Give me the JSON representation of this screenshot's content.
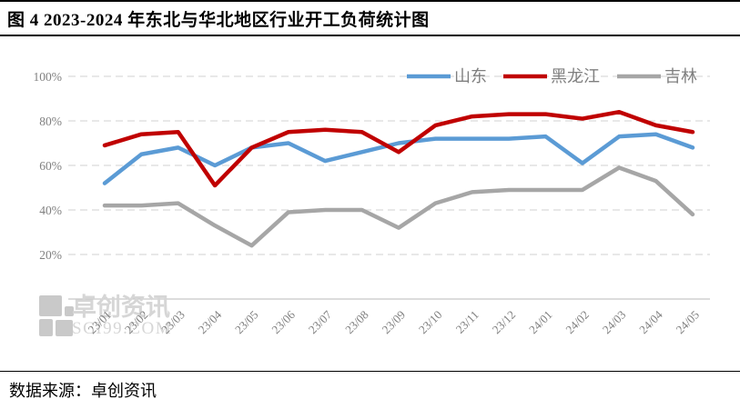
{
  "page": {
    "title": "图 4 2023-2024 年东北与华北地区行业开工负荷统计图",
    "source_label": "数据来源：卓创资讯"
  },
  "watermark": {
    "text": "卓创资讯",
    "subtext": "SCI99.COM"
  },
  "chart_data": {
    "type": "line",
    "title": "",
    "xlabel": "",
    "ylabel": "",
    "categories": [
      "23/01",
      "23/02",
      "23/03",
      "23/04",
      "23/05",
      "23/06",
      "23/07",
      "23/08",
      "23/09",
      "23/10",
      "23/11",
      "23/12",
      "24/01",
      "24/02",
      "24/03",
      "24/04",
      "24/05"
    ],
    "series": [
      {
        "name": "山东",
        "color": "#5B9BD5",
        "values": [
          52,
          65,
          68,
          60,
          68,
          70,
          62,
          66,
          70,
          72,
          72,
          72,
          73,
          61,
          73,
          74,
          68
        ]
      },
      {
        "name": "黑龙江",
        "color": "#C00000",
        "values": [
          69,
          74,
          75,
          51,
          68,
          75,
          76,
          75,
          66,
          78,
          82,
          83,
          83,
          81,
          84,
          78,
          75
        ]
      },
      {
        "name": "吉林",
        "color": "#A6A6A6",
        "values": [
          42,
          42,
          43,
          33,
          24,
          39,
          40,
          40,
          32,
          43,
          48,
          49,
          49,
          49,
          59,
          53,
          38
        ]
      }
    ],
    "ylim": [
      0,
      100
    ],
    "y_ticks": [
      "0%",
      "20%",
      "40%",
      "60%",
      "80%",
      "100%"
    ],
    "y_tick_values": [
      0,
      20,
      40,
      60,
      80,
      100
    ],
    "grid": true,
    "gridline_color": "#D9D9D9",
    "axis_text_color": "#808080",
    "legend_text_color": "#7F7F7F",
    "legend_position": "top-right"
  }
}
